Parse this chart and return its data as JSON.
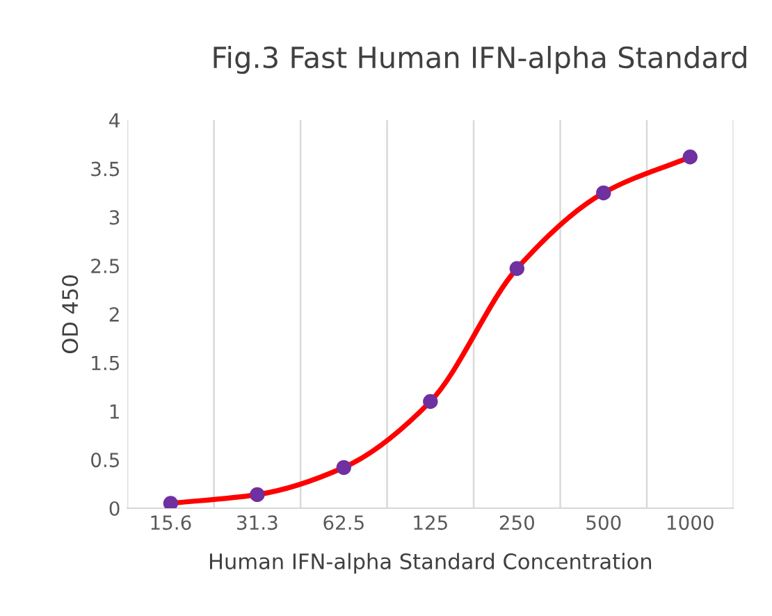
{
  "chart_data": {
    "type": "line",
    "title": "Fig.3 Fast Human IFN-alpha Standard",
    "xlabel": "Human IFN-alpha Standard Concentration",
    "ylabel": "OD 450",
    "categories": [
      "15.6",
      "31.3",
      "62.5",
      "125",
      "250",
      "500",
      "1000"
    ],
    "series": [
      {
        "color": "#ff0000",
        "colors": [
          "#7030a0",
          "#7030a0",
          "#7030a0",
          "#7030a0",
          "#7030a0",
          "#7030a0",
          "#7030a0"
        ],
        "values": [
          0.05,
          0.14,
          0.42,
          1.1,
          2.47,
          3.25,
          3.62
        ]
      }
    ],
    "ylim": [
      0,
      4
    ],
    "yticks": [
      0,
      0.5,
      1,
      1.5,
      2,
      2.5,
      3,
      3.5,
      4
    ],
    "grid": "x",
    "marker": "circle",
    "line_style": "solid"
  }
}
